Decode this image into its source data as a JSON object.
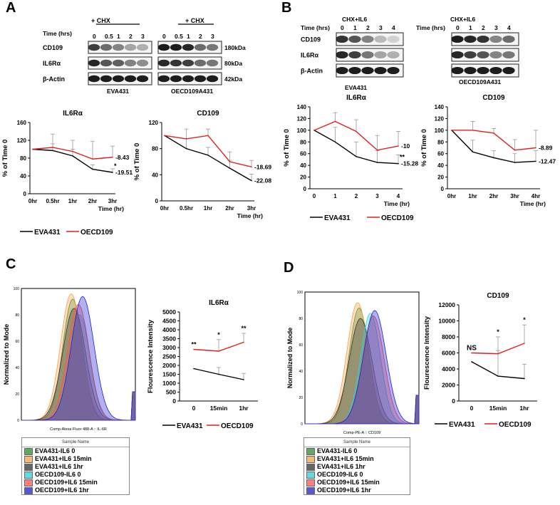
{
  "panels": {
    "A": {
      "label": "A",
      "blot": {
        "time_label": "Time (hrs)",
        "treatment": "+ CHX",
        "times_left": [
          "0",
          "0.5",
          "1",
          "2",
          "3"
        ],
        "times_right": [
          "0",
          "0.5",
          "1",
          "2",
          "3"
        ],
        "rows": [
          "CD109",
          "IL6Rα",
          "β-Actin"
        ],
        "kda": [
          "180kDa",
          "80kDa",
          "42kDa"
        ],
        "cell_left": "EVA431",
        "cell_right": "OECD109A431"
      },
      "charts": [
        {
          "title": "IL6Rα",
          "ylabel": "% of Time 0",
          "xlabel": "Time (hr)",
          "yticks": [
            "0",
            "40",
            "80",
            "120",
            "160"
          ],
          "ymax": 160,
          "categories": [
            "0hr",
            "0.5hr",
            "1hr",
            "2hr",
            "3hr"
          ],
          "series": [
            {
              "name": "EVA431",
              "color": "#000000",
              "values": [
                100,
                97,
                85,
                55,
                48
              ]
            },
            {
              "name": "OECD109",
              "color": "#e02020",
              "values": [
                100,
                104,
                95,
                78,
                82
              ]
            }
          ],
          "end_labels": [
            "-8.43",
            "-19.51"
          ],
          "star": "*"
        },
        {
          "title": "CD109",
          "ylabel": "% of Time 0",
          "xlabel": "Time (hr)",
          "yticks": [
            "0",
            "40",
            "80",
            "120"
          ],
          "ymax": 120,
          "categories": [
            "0hr",
            "0.5hr",
            "1hr",
            "2hr",
            "3hr"
          ],
          "series": [
            {
              "name": "EVA431",
              "color": "#000000",
              "values": [
                100,
                80,
                70,
                50,
                31
              ]
            },
            {
              "name": "OECD109",
              "color": "#e02020",
              "values": [
                100,
                95,
                100,
                60,
                52
              ]
            }
          ],
          "end_labels": [
            "-18.69",
            "-22.08"
          ]
        }
      ],
      "legend": [
        "EVA431",
        "OECD109"
      ]
    },
    "B": {
      "label": "B",
      "blot": {
        "time_label": "Time (hrs)",
        "treatment": "CHX+IL6",
        "times_left": [
          "0",
          "1",
          "2",
          "3",
          "4"
        ],
        "times_right": [
          "0",
          "1",
          "2",
          "3",
          "4"
        ],
        "rows": [
          "CD109",
          "IL6Rα",
          "β-Actin"
        ],
        "cell_left": "EVA431",
        "cell_right": "OECD109A431"
      },
      "charts": [
        {
          "title": "IL6Rα",
          "ylabel": "% of Time 0",
          "xlabel": "Time (hr)",
          "yticks": [
            "0",
            "20",
            "40",
            "60",
            "80",
            "100",
            "120",
            "140"
          ],
          "ymax": 140,
          "categories": [
            "0",
            "1",
            "2",
            "3",
            "4"
          ],
          "series": [
            {
              "name": "EVA431",
              "color": "#000000",
              "values": [
                100,
                80,
                55,
                45,
                43
              ]
            },
            {
              "name": "OECD109",
              "color": "#e02020",
              "values": [
                100,
                115,
                98,
                66,
                73
              ]
            }
          ],
          "end_labels": [
            "-10",
            "-15.28"
          ],
          "star": "**"
        },
        {
          "title": "CD109",
          "ylabel": "% of Time 0",
          "xlabel": "Time (hr)",
          "yticks": [
            "0",
            "20",
            "40",
            "60",
            "80",
            "100",
            "120",
            "140"
          ],
          "ymax": 140,
          "categories": [
            "0hr",
            "1hr",
            "2hr",
            "3hr",
            "4hr"
          ],
          "series": [
            {
              "name": "EVA431",
              "color": "#000000",
              "values": [
                100,
                63,
                53,
                45,
                47
              ]
            },
            {
              "name": "OECD109",
              "color": "#e02020",
              "values": [
                100,
                100,
                95,
                66,
                70
              ]
            }
          ],
          "end_labels": [
            "-8.89",
            "-12.47"
          ]
        }
      ],
      "legend": [
        "EVA431",
        "OECD109"
      ]
    },
    "C": {
      "label": "C",
      "flow": {
        "ylabel": "Normalized to Mode",
        "xlabel": "Comp-Alexa Fluor 488-A :: IL-6R",
        "yticks": [
          "0",
          "20",
          "40",
          "60",
          "80",
          "100"
        ],
        "legend_header": "Sample Name",
        "samples": [
          {
            "name": "EVA431-IL6  0",
            "color": "#2e8b2e"
          },
          {
            "name": "EVA431+IL6 15min",
            "color": "#f5a24b"
          },
          {
            "name": "EVA431+IL6 1hr",
            "color": "#333333"
          },
          {
            "name": "OECD109-IL6 0",
            "color": "#30d0e0"
          },
          {
            "name": "OECD109+IL6 15min",
            "color": "#ff5555"
          },
          {
            "name": "OECD109+IL6 1hr",
            "color": "#2020d0"
          }
        ]
      },
      "chart": {
        "title": "IL6Rα",
        "ylabel": "Flourescence Intensity",
        "yticks": [
          "0",
          "500",
          "1000",
          "1500",
          "2000",
          "2500",
          "3000",
          "3500",
          "4000",
          "4500",
          "5000"
        ],
        "ymax": 5000,
        "categories": [
          "0",
          "15min",
          "1hr"
        ],
        "series": [
          {
            "name": "EVA431",
            "color": "#000000",
            "values": [
              1820,
              1500,
              1200
            ]
          },
          {
            "name": "OECD109",
            "color": "#e02020",
            "values": [
              2900,
              2800,
              3300
            ]
          }
        ],
        "stars": [
          "**",
          "*",
          "**"
        ]
      },
      "legend": [
        "EVA431",
        "OECD109"
      ]
    },
    "D": {
      "label": "D",
      "flow": {
        "ylabel": "Normalized to Mode",
        "xlabel": "Comp-PE-A :: CD109",
        "yticks": [
          "0",
          "20",
          "40",
          "60",
          "80",
          "100"
        ],
        "legend_header": "Sample Name",
        "samples": [
          {
            "name": "EVA431-IL6  0",
            "color": "#2e8b2e"
          },
          {
            "name": "EVA431+IL6 15min",
            "color": "#f5a24b"
          },
          {
            "name": "EVA431+IL6 1hr",
            "color": "#333333"
          },
          {
            "name": "OECD109-IL6 0",
            "color": "#30d0e0"
          },
          {
            "name": "OECD109+IL6 15min",
            "color": "#ff5555"
          },
          {
            "name": "OECD109+IL6 1hr",
            "color": "#2020d0"
          }
        ]
      },
      "chart": {
        "title": "CD109",
        "ylabel": "Flourescence Intensity",
        "yticks": [
          "0",
          "2000",
          "4000",
          "6000",
          "8000",
          "10000",
          "12000"
        ],
        "ymax": 12000,
        "categories": [
          "0",
          "15min",
          "1hr"
        ],
        "series": [
          {
            "name": "EVA431",
            "color": "#000000",
            "values": [
              4900,
              3100,
              2800
            ]
          },
          {
            "name": "OECD109",
            "color": "#e02020",
            "values": [
              6000,
              5900,
              7200
            ]
          }
        ],
        "stars": [
          "NS",
          "*",
          "*"
        ]
      },
      "legend": [
        "EVA431",
        "OECD109"
      ]
    }
  },
  "chart_data": [
    {
      "type": "line",
      "title": "IL6Rα (A)",
      "categories": [
        "0hr",
        "0.5hr",
        "1hr",
        "2hr",
        "3hr"
      ],
      "series": [
        {
          "name": "EVA431",
          "values": [
            100,
            97,
            85,
            55,
            48
          ]
        },
        {
          "name": "OECD109",
          "values": [
            100,
            104,
            95,
            78,
            82
          ]
        }
      ],
      "ylabel": "% of Time 0",
      "xlabel": "Time (hr)",
      "ylim": [
        0,
        160
      ]
    },
    {
      "type": "line",
      "title": "CD109 (A)",
      "categories": [
        "0hr",
        "0.5hr",
        "1hr",
        "2hr",
        "3hr"
      ],
      "series": [
        {
          "name": "EVA431",
          "values": [
            100,
            80,
            70,
            50,
            31
          ]
        },
        {
          "name": "OECD109",
          "values": [
            100,
            95,
            100,
            60,
            52
          ]
        }
      ],
      "ylabel": "% of Time 0",
      "xlabel": "Time (hr)",
      "ylim": [
        0,
        120
      ]
    },
    {
      "type": "line",
      "title": "IL6Rα (B)",
      "categories": [
        "0",
        "1",
        "2",
        "3",
        "4"
      ],
      "series": [
        {
          "name": "EVA431",
          "values": [
            100,
            80,
            55,
            45,
            43
          ]
        },
        {
          "name": "OECD109",
          "values": [
            100,
            115,
            98,
            66,
            73
          ]
        }
      ],
      "ylabel": "% of Time 0",
      "xlabel": "Time (hr)",
      "ylim": [
        0,
        140
      ]
    },
    {
      "type": "line",
      "title": "CD109 (B)",
      "categories": [
        "0hr",
        "1hr",
        "2hr",
        "3hr",
        "4hr"
      ],
      "series": [
        {
          "name": "EVA431",
          "values": [
            100,
            63,
            53,
            45,
            47
          ]
        },
        {
          "name": "OECD109",
          "values": [
            100,
            100,
            95,
            66,
            70
          ]
        }
      ],
      "ylabel": "% of Time 0",
      "xlabel": "Time (hr)",
      "ylim": [
        0,
        140
      ]
    },
    {
      "type": "line",
      "title": "IL6Rα (C)",
      "categories": [
        "0",
        "15min",
        "1hr"
      ],
      "series": [
        {
          "name": "EVA431",
          "values": [
            1820,
            1500,
            1200
          ]
        },
        {
          "name": "OECD109",
          "values": [
            2900,
            2800,
            3300
          ]
        }
      ],
      "ylabel": "Flourescence Intensity",
      "ylim": [
        0,
        5000
      ]
    },
    {
      "type": "line",
      "title": "CD109 (D)",
      "categories": [
        "0",
        "15min",
        "1hr"
      ],
      "series": [
        {
          "name": "EVA431",
          "values": [
            4900,
            3100,
            2800
          ]
        },
        {
          "name": "OECD109",
          "values": [
            6000,
            5900,
            7200
          ]
        }
      ],
      "ylabel": "Flourescence Intensity",
      "ylim": [
        0,
        12000
      ]
    }
  ]
}
